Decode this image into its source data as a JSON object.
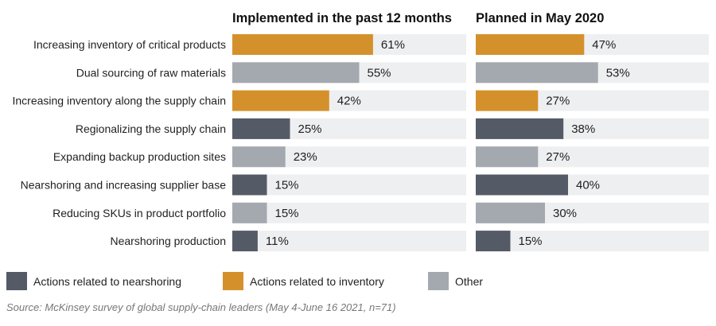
{
  "colors": {
    "nearshoring": "#545b66",
    "inventory": "#d4912b",
    "other": "#a4a9b0",
    "track": "#eeeff0"
  },
  "chart_data": {
    "type": "bar",
    "orientation": "horizontal",
    "categories": [
      "Increasing inventory of critical products",
      "Dual sourcing of raw materials",
      "Increasing inventory along the supply chain",
      "Regionalizing the supply chain",
      "Expanding backup production sites",
      "Nearshoring and increasing supplier base",
      "Reducing SKUs in product portfolio",
      "Nearshoring production"
    ],
    "groups": [
      "inventory",
      "other",
      "inventory",
      "nearshoring",
      "other",
      "nearshoring",
      "other",
      "nearshoring"
    ],
    "series": [
      {
        "name": "Implemented in the past 12 months",
        "values": [
          61,
          55,
          42,
          25,
          23,
          15,
          15,
          11
        ]
      },
      {
        "name": "Planned in May 2020",
        "values": [
          47,
          53,
          27,
          38,
          27,
          40,
          30,
          15
        ]
      }
    ],
    "unit": "%",
    "xlim": [
      0,
      100
    ],
    "legend": [
      {
        "key": "nearshoring",
        "label": "Actions related to nearshoring"
      },
      {
        "key": "inventory",
        "label": "Actions related to inventory"
      },
      {
        "key": "other",
        "label": "Other"
      }
    ],
    "legend_position": "bottom",
    "grid": false
  },
  "source": "Source: McKinsey survey of global supply-chain leaders (May 4-June 16 2021, n=71)"
}
